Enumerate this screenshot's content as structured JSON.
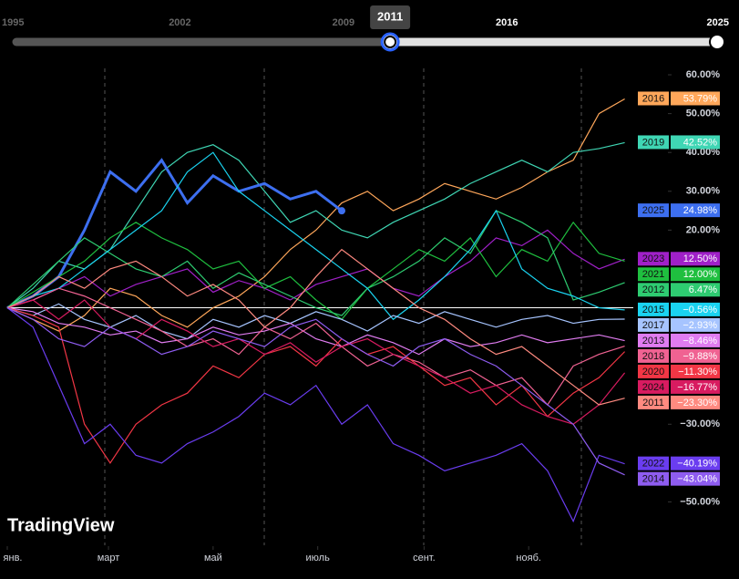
{
  "chart_data": {
    "type": "line",
    "slider": {
      "ticks": [
        1995,
        2002,
        2009,
        2016,
        2025
      ],
      "selected": 2011,
      "range": [
        1995,
        2025
      ]
    },
    "logo": "TradingView",
    "x": [
      0,
      15,
      30,
      45,
      60,
      75,
      90,
      105,
      120,
      135,
      150,
      165,
      180,
      195,
      210,
      225,
      240,
      255,
      270,
      285,
      300,
      315,
      330,
      345,
      360
    ],
    "xlim": [
      0,
      365
    ],
    "xticks": [
      {
        "value": 0,
        "label": "янв."
      },
      {
        "value": 59,
        "label": "март"
      },
      {
        "value": 120,
        "label": "май"
      },
      {
        "value": 181,
        "label": "июль"
      },
      {
        "value": 243,
        "label": "сент."
      },
      {
        "value": 304,
        "label": "нояб."
      }
    ],
    "ylim": [
      -60,
      64
    ],
    "yticks": [
      {
        "value": 60,
        "label": "60.00%"
      },
      {
        "value": 50,
        "label": "50.00%"
      },
      {
        "value": 40,
        "label": "40.00%"
      },
      {
        "value": 30,
        "label": "30.00%"
      },
      {
        "value": 20,
        "label": "20.00%"
      },
      {
        "value": -30,
        "label": "−30.00%"
      },
      {
        "value": -50,
        "label": "−50.00%"
      }
    ],
    "series": [
      {
        "name": "2016",
        "color": "#ffa75a",
        "values": [
          0,
          -3,
          -6,
          -2,
          5,
          3,
          -2,
          -5,
          0,
          3,
          8,
          15,
          20,
          27,
          30,
          25,
          28,
          32,
          30,
          28,
          31,
          35,
          38,
          50,
          53.79
        ],
        "value_labels": [
          null,
          null,
          null,
          null,
          null,
          null,
          null,
          null,
          null,
          null,
          null,
          null,
          null,
          null,
          null,
          null,
          null,
          null,
          null,
          null,
          null,
          null,
          null,
          null,
          "53.79%"
        ]
      },
      {
        "name": "2019",
        "color": "#3fd6b4",
        "values": [
          0,
          5,
          12,
          10,
          15,
          25,
          35,
          40,
          42,
          38,
          30,
          22,
          25,
          20,
          18,
          22,
          25,
          28,
          32,
          35,
          38,
          35,
          40,
          41,
          42.52
        ],
        "value_labels": [
          null,
          null,
          null,
          null,
          null,
          null,
          null,
          null,
          null,
          null,
          null,
          null,
          null,
          null,
          null,
          null,
          null,
          null,
          null,
          null,
          null,
          null,
          null,
          null,
          "42.52%"
        ]
      },
      {
        "name": "2025",
        "color": "#3d6ff0",
        "values": [
          0,
          3,
          8,
          20,
          35,
          30,
          38,
          27,
          34,
          30,
          32,
          28,
          30,
          24.98,
          null,
          null,
          null,
          null,
          null,
          null,
          null,
          null,
          null,
          null,
          null
        ],
        "value_labels": [
          null,
          null,
          null,
          null,
          null,
          null,
          null,
          null,
          null,
          null,
          null,
          null,
          null,
          "24.98%",
          null,
          null,
          null,
          null,
          null,
          null,
          null,
          null,
          null,
          null,
          null
        ]
      },
      {
        "name": "2023",
        "color": "#a020c8",
        "values": [
          0,
          2,
          5,
          8,
          3,
          6,
          8,
          10,
          4,
          7,
          5,
          2,
          6,
          8,
          10,
          5,
          3,
          8,
          12,
          18,
          16,
          20,
          14,
          10,
          12.5
        ],
        "value_labels": [
          null,
          null,
          null,
          null,
          null,
          null,
          null,
          null,
          null,
          null,
          null,
          null,
          null,
          null,
          null,
          null,
          null,
          null,
          null,
          null,
          null,
          null,
          null,
          null,
          "12.50%"
        ]
      },
      {
        "name": "2021",
        "color": "#1fbf3f",
        "values": [
          0,
          4,
          8,
          12,
          18,
          22,
          18,
          15,
          10,
          12,
          5,
          8,
          2,
          -3,
          5,
          10,
          15,
          12,
          18,
          8,
          15,
          12,
          22,
          14,
          12
        ],
        "value_labels": [
          null,
          null,
          null,
          null,
          null,
          null,
          null,
          null,
          null,
          null,
          null,
          null,
          null,
          null,
          null,
          null,
          null,
          null,
          null,
          null,
          null,
          null,
          null,
          null,
          "12.00%"
        ]
      },
      {
        "name": "2012",
        "color": "#2ecc71",
        "values": [
          0,
          6,
          12,
          18,
          14,
          10,
          8,
          12,
          5,
          9,
          6,
          3,
          0,
          -2,
          5,
          8,
          12,
          18,
          14,
          25,
          22,
          18,
          2,
          4,
          6.47
        ],
        "value_labels": [
          null,
          null,
          null,
          null,
          null,
          null,
          null,
          null,
          null,
          null,
          null,
          null,
          null,
          null,
          null,
          null,
          null,
          null,
          null,
          null,
          null,
          null,
          null,
          null,
          "6.47%"
        ]
      },
      {
        "name": "2015",
        "color": "#1ad3f0",
        "values": [
          0,
          3,
          5,
          10,
          15,
          20,
          25,
          35,
          40,
          30,
          25,
          20,
          15,
          10,
          5,
          -3,
          2,
          8,
          15,
          25,
          10,
          5,
          3,
          0,
          -0.56
        ],
        "value_labels": [
          null,
          null,
          null,
          null,
          null,
          null,
          null,
          null,
          null,
          null,
          null,
          null,
          null,
          null,
          null,
          null,
          null,
          null,
          null,
          null,
          null,
          null,
          null,
          null,
          "−0.56%"
        ]
      },
      {
        "name": "2017",
        "color": "#a6c4ff",
        "values": [
          0,
          -2,
          1,
          -3,
          -5,
          -2,
          -6,
          -8,
          -3,
          -5,
          -2,
          -4,
          -1,
          -3,
          -6,
          -2,
          -4,
          -1,
          -3,
          -5,
          -3,
          -2,
          -4,
          -3,
          -2.93
        ],
        "value_labels": [
          null,
          null,
          null,
          null,
          null,
          null,
          null,
          null,
          null,
          null,
          null,
          null,
          null,
          null,
          null,
          null,
          null,
          null,
          null,
          null,
          null,
          null,
          null,
          null,
          "−2.93%"
        ]
      },
      {
        "name": "2013",
        "color": "#e07cf0",
        "values": [
          0,
          -1,
          -4,
          -5,
          -7,
          -6,
          -9,
          -8,
          -5,
          -7,
          -6,
          -4,
          -8,
          -10,
          -7,
          -9,
          -12,
          -8,
          -10,
          -9,
          -7,
          -9,
          -8,
          -7,
          -8.46
        ],
        "value_labels": [
          null,
          null,
          null,
          null,
          null,
          null,
          null,
          null,
          null,
          null,
          null,
          null,
          null,
          null,
          null,
          null,
          null,
          null,
          null,
          null,
          null,
          null,
          null,
          null,
          "−8.46%"
        ]
      },
      {
        "name": "2018",
        "color": "#f06292",
        "values": [
          0,
          2,
          5,
          3,
          0,
          -3,
          -6,
          -10,
          -8,
          -12,
          -5,
          -8,
          -4,
          -10,
          -15,
          -12,
          -14,
          -18,
          -16,
          -20,
          -18,
          -25,
          -15,
          -12,
          -9.88
        ],
        "value_labels": [
          null,
          null,
          null,
          null,
          null,
          null,
          null,
          null,
          null,
          null,
          null,
          null,
          null,
          null,
          null,
          null,
          null,
          null,
          null,
          null,
          null,
          null,
          null,
          null,
          "−9.88%"
        ]
      },
      {
        "name": "2020",
        "color": "#f23645",
        "values": [
          0,
          -2,
          -5,
          -30,
          -40,
          -30,
          -25,
          -22,
          -15,
          -18,
          -12,
          -10,
          -15,
          -8,
          -12,
          -10,
          -15,
          -20,
          -18,
          -25,
          -20,
          -28,
          -22,
          -18,
          -11.3
        ],
        "value_labels": [
          null,
          null,
          null,
          null,
          null,
          null,
          null,
          null,
          null,
          null,
          null,
          null,
          null,
          null,
          null,
          null,
          null,
          null,
          null,
          null,
          null,
          null,
          null,
          null,
          "−11.30%"
        ]
      },
      {
        "name": "2024",
        "color": "#d81b60",
        "values": [
          0,
          2,
          -3,
          2,
          -5,
          -8,
          -3,
          -6,
          -10,
          -8,
          -12,
          -9,
          -14,
          -10,
          -8,
          -12,
          -15,
          -18,
          -22,
          -20,
          -25,
          -28,
          -30,
          -25,
          -16.77
        ],
        "value_labels": [
          null,
          null,
          null,
          null,
          null,
          null,
          null,
          null,
          null,
          null,
          null,
          null,
          null,
          null,
          null,
          null,
          null,
          null,
          null,
          null,
          null,
          null,
          null,
          null,
          "−16.77%"
        ]
      },
      {
        "name": "2011",
        "color": "#ff8a80",
        "values": [
          0,
          3,
          8,
          5,
          10,
          12,
          8,
          3,
          6,
          2,
          -5,
          0,
          8,
          15,
          10,
          5,
          0,
          -3,
          -8,
          -12,
          -10,
          -15,
          -20,
          -25,
          -23.3
        ],
        "value_labels": [
          null,
          null,
          null,
          null,
          null,
          null,
          null,
          null,
          null,
          null,
          null,
          null,
          null,
          null,
          null,
          null,
          null,
          null,
          null,
          null,
          null,
          null,
          null,
          null,
          "−23.30%"
        ]
      },
      {
        "name": "2022",
        "color": "#6a3df0",
        "values": [
          0,
          -5,
          -20,
          -35,
          -30,
          -38,
          -40,
          -35,
          -32,
          -28,
          -22,
          -25,
          -20,
          -30,
          -25,
          -35,
          -38,
          -42,
          -40,
          -38,
          -35,
          -42,
          -55,
          -38,
          -40.19
        ],
        "value_labels": [
          null,
          null,
          null,
          null,
          null,
          null,
          null,
          null,
          null,
          null,
          null,
          null,
          null,
          null,
          null,
          null,
          null,
          null,
          null,
          null,
          null,
          null,
          null,
          null,
          "−40.19%"
        ]
      },
      {
        "name": "2014",
        "color": "#8e5cf0",
        "values": [
          0,
          -3,
          -8,
          -10,
          -5,
          -8,
          -12,
          -10,
          -6,
          -8,
          -10,
          -5,
          -3,
          -8,
          -12,
          -15,
          -10,
          -8,
          -12,
          -15,
          -20,
          -25,
          -30,
          -40,
          -43.04
        ],
        "value_labels": [
          null,
          null,
          null,
          null,
          null,
          null,
          null,
          null,
          null,
          null,
          null,
          null,
          null,
          null,
          null,
          null,
          null,
          null,
          null,
          null,
          null,
          null,
          null,
          null,
          "−43.04%"
        ]
      }
    ]
  }
}
